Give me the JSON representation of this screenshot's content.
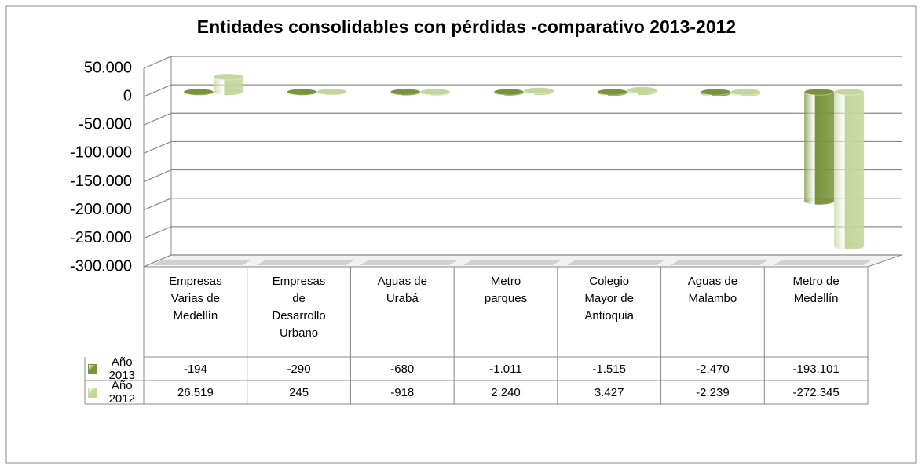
{
  "chart_data": {
    "type": "bar",
    "title": "Entidades consolidables con pérdidas -comparativo 2013-2012",
    "categories": [
      "Empresas Varias de Medellín",
      "Empresas de Desarrollo Urbano",
      "Aguas de Urabá",
      "Metro parques",
      "Colegio Mayor de Antioquia",
      "Aguas de Malambo",
      "Metro de Medellín"
    ],
    "series": [
      {
        "name": "Año 2013",
        "color": "#77933c",
        "values": [
          -194,
          -290,
          -680,
          -1011,
          -1515,
          -2470,
          -193101
        ],
        "value_labels": [
          "-194",
          "-290",
          "-680",
          "-1.011",
          "-1.515",
          "-2.470",
          "-193.101"
        ]
      },
      {
        "name": "Año 2012",
        "color": "#c3d69b",
        "values": [
          26519,
          245,
          -918,
          2240,
          3427,
          -2239,
          -272345
        ],
        "value_labels": [
          "26.519",
          "245",
          "-918",
          "2.240",
          "3.427",
          "-2.239",
          "-272.345"
        ]
      }
    ],
    "ylim": [
      -300000,
      50000
    ],
    "yticks": [
      {
        "value": 50000,
        "label": "50.000"
      },
      0,
      {
        "value": -50000,
        "label": "-50.000"
      },
      {
        "value": -100000,
        "label": "-100.000"
      },
      {
        "value": -150000,
        "label": "-150.000"
      },
      {
        "value": -200000,
        "label": "-200.000"
      },
      {
        "value": -250000,
        "label": "-250.000"
      },
      {
        "value": -300000,
        "label": "-300.000"
      }
    ],
    "grid": true
  }
}
